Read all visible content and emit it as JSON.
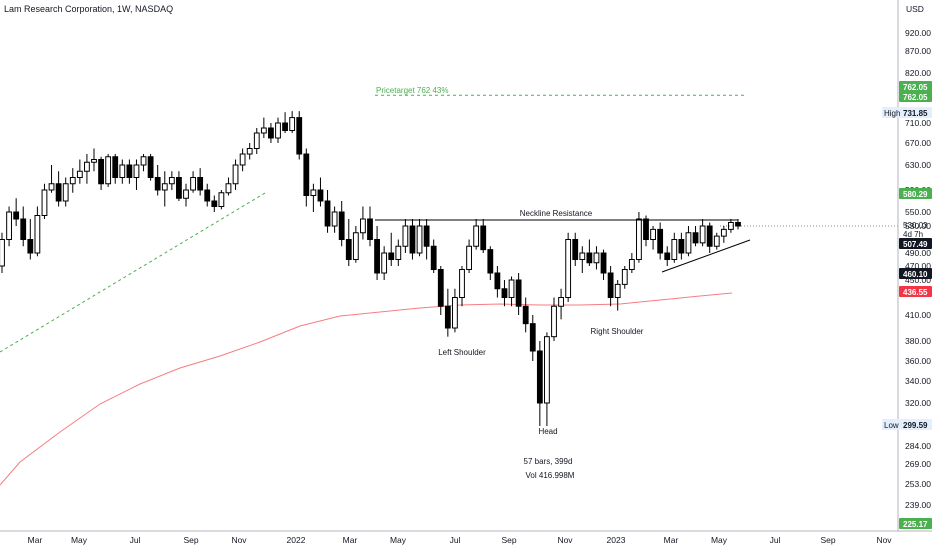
{
  "chart_data": {
    "type": "candlestick",
    "title": "Lam Research Corporation, 1W, NASDAQ",
    "currency": "USD",
    "y_ticks": [
      920,
      870,
      820,
      760,
      710,
      670,
      630,
      590,
      550,
      530,
      490,
      470,
      450,
      410,
      380,
      360,
      340,
      320,
      300,
      284,
      269,
      253,
      239
    ],
    "x_ticks": [
      "Mar",
      "May",
      "Jul",
      "Sep",
      "Nov",
      "2022",
      "Mar",
      "May",
      "Jul",
      "Sep",
      "Nov",
      "2023",
      "Mar",
      "May",
      "Jul",
      "Sep",
      "Nov"
    ],
    "price_badges": [
      {
        "value": "762.05",
        "kind": "target"
      },
      {
        "value": "762.05",
        "kind": "target"
      },
      {
        "value": "731.85",
        "kind": "high",
        "tag": "High"
      },
      {
        "value": "580.29",
        "kind": "green"
      },
      {
        "value": "530.03",
        "kind": "current-plain"
      },
      {
        "value": "4d 7h",
        "kind": "countdown"
      },
      {
        "value": "507.49",
        "kind": "black"
      },
      {
        "value": "460.10",
        "kind": "black"
      },
      {
        "value": "436.55",
        "kind": "red"
      },
      {
        "value": "299.59",
        "kind": "low",
        "tag": "Low"
      },
      {
        "value": "225.17",
        "kind": "green"
      }
    ],
    "annotations": {
      "pricetarget": "Pricetarget 762 43%",
      "neckline": "Neckline Resistance",
      "left_shoulder": "Left Shoulder",
      "head": "Head",
      "right_shoulder": "Right Shoulder",
      "bars": "57 bars, 399d",
      "vol": "Vol 416.998M"
    },
    "ohlc": [
      [
        470,
        520,
        460,
        510
      ],
      [
        510,
        560,
        500,
        550
      ],
      [
        550,
        575,
        530,
        540
      ],
      [
        540,
        560,
        500,
        510
      ],
      [
        510,
        540,
        480,
        490
      ],
      [
        490,
        560,
        485,
        545
      ],
      [
        545,
        600,
        540,
        590
      ],
      [
        590,
        630,
        585,
        600
      ],
      [
        600,
        620,
        560,
        570
      ],
      [
        570,
        610,
        560,
        600
      ],
      [
        600,
        625,
        585,
        610
      ],
      [
        610,
        640,
        600,
        620
      ],
      [
        620,
        650,
        600,
        635
      ],
      [
        635,
        660,
        620,
        640
      ],
      [
        640,
        645,
        590,
        600
      ],
      [
        600,
        650,
        595,
        645
      ],
      [
        645,
        650,
        600,
        610
      ],
      [
        610,
        640,
        600,
        630
      ],
      [
        630,
        640,
        600,
        610
      ],
      [
        610,
        640,
        590,
        630
      ],
      [
        630,
        650,
        620,
        645
      ],
      [
        645,
        650,
        605,
        610
      ],
      [
        610,
        630,
        580,
        590
      ],
      [
        590,
        620,
        560,
        600
      ],
      [
        600,
        620,
        590,
        610
      ],
      [
        610,
        620,
        570,
        575
      ],
      [
        575,
        600,
        560,
        590
      ],
      [
        590,
        620,
        585,
        610
      ],
      [
        610,
        625,
        580,
        590
      ],
      [
        590,
        600,
        560,
        570
      ],
      [
        570,
        580,
        550,
        560
      ],
      [
        560,
        590,
        555,
        585
      ],
      [
        585,
        610,
        580,
        600
      ],
      [
        600,
        640,
        590,
        630
      ],
      [
        630,
        660,
        620,
        650
      ],
      [
        650,
        670,
        640,
        660
      ],
      [
        660,
        700,
        650,
        690
      ],
      [
        690,
        720,
        680,
        700
      ],
      [
        700,
        710,
        670,
        680
      ],
      [
        680,
        720,
        670,
        710
      ],
      [
        710,
        730,
        690,
        695
      ],
      [
        695,
        732,
        690,
        720
      ],
      [
        720,
        732,
        640,
        650
      ],
      [
        650,
        660,
        560,
        580
      ],
      [
        580,
        600,
        550,
        590
      ],
      [
        590,
        610,
        560,
        570
      ],
      [
        570,
        590,
        520,
        530
      ],
      [
        530,
        560,
        520,
        550
      ],
      [
        550,
        570,
        500,
        510
      ],
      [
        510,
        540,
        470,
        480
      ],
      [
        480,
        530,
        475,
        520
      ],
      [
        520,
        560,
        510,
        540
      ],
      [
        540,
        560,
        500,
        510
      ],
      [
        510,
        530,
        450,
        460
      ],
      [
        460,
        500,
        450,
        490
      ],
      [
        490,
        520,
        470,
        480
      ],
      [
        480,
        510,
        470,
        500
      ],
      [
        500,
        540,
        490,
        530
      ],
      [
        530,
        540,
        480,
        490
      ],
      [
        490,
        540,
        485,
        530
      ],
      [
        530,
        540,
        480,
        500
      ],
      [
        500,
        510,
        460,
        465
      ],
      [
        465,
        470,
        410,
        420
      ],
      [
        420,
        440,
        385,
        395
      ],
      [
        395,
        440,
        390,
        430
      ],
      [
        430,
        470,
        420,
        465
      ],
      [
        465,
        510,
        460,
        500
      ],
      [
        500,
        540,
        495,
        530
      ],
      [
        530,
        540,
        490,
        495
      ],
      [
        495,
        500,
        450,
        460
      ],
      [
        460,
        470,
        430,
        440
      ],
      [
        440,
        450,
        420,
        430
      ],
      [
        430,
        455,
        420,
        450
      ],
      [
        450,
        460,
        410,
        420
      ],
      [
        420,
        430,
        390,
        400
      ],
      [
        400,
        410,
        360,
        370
      ],
      [
        370,
        380,
        300,
        320
      ],
      [
        320,
        390,
        300,
        385
      ],
      [
        385,
        430,
        380,
        420
      ],
      [
        420,
        440,
        405,
        430
      ],
      [
        430,
        520,
        425,
        510
      ],
      [
        510,
        520,
        470,
        480
      ],
      [
        480,
        500,
        460,
        490
      ],
      [
        490,
        510,
        470,
        475
      ],
      [
        475,
        500,
        465,
        490
      ],
      [
        490,
        495,
        450,
        460
      ],
      [
        460,
        470,
        420,
        430
      ],
      [
        430,
        450,
        415,
        445
      ],
      [
        445,
        470,
        440,
        465
      ],
      [
        465,
        490,
        460,
        480
      ],
      [
        480,
        550,
        475,
        540
      ],
      [
        540,
        545,
        500,
        510
      ],
      [
        510,
        530,
        495,
        525
      ],
      [
        525,
        535,
        480,
        490
      ],
      [
        490,
        500,
        470,
        480
      ],
      [
        480,
        520,
        475,
        510
      ],
      [
        510,
        520,
        480,
        490
      ],
      [
        490,
        530,
        485,
        520
      ],
      [
        520,
        530,
        500,
        505
      ],
      [
        505,
        540,
        500,
        530
      ],
      [
        530,
        535,
        490,
        500
      ],
      [
        500,
        520,
        495,
        515
      ],
      [
        515,
        530,
        505,
        525
      ],
      [
        525,
        540,
        520,
        535
      ],
      [
        535,
        540,
        525,
        530
      ]
    ],
    "ma_red": [
      [
        0,
        253
      ],
      [
        8,
        268
      ],
      [
        20,
        290
      ],
      [
        35,
        320
      ],
      [
        50,
        345
      ],
      [
        65,
        362
      ],
      [
        80,
        378
      ],
      [
        95,
        392
      ],
      [
        105,
        412
      ],
      [
        112,
        425
      ],
      [
        120,
        432
      ],
      [
        130,
        437
      ],
      [
        140,
        441
      ],
      [
        150,
        444
      ],
      [
        160,
        446
      ],
      [
        165,
        447
      ],
      [
        175,
        452
      ],
      [
        190,
        458
      ]
    ],
    "ma_green_dashed": [
      [
        0,
        378
      ],
      [
        20,
        400
      ],
      [
        40,
        430
      ],
      [
        60,
        480
      ],
      [
        68,
        500
      ]
    ],
    "neckline": {
      "x0": 97,
      "x1": 192,
      "y": 542
    },
    "triangle_support": {
      "x0": 172,
      "y0": 486,
      "x1": 195,
      "y1": 520
    },
    "pricetarget_line": {
      "x0": 97,
      "x1": 194,
      "y": 762
    }
  }
}
